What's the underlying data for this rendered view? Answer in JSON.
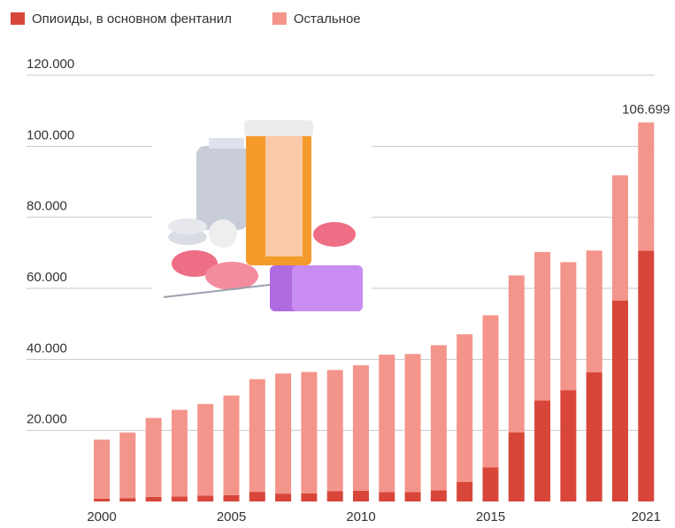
{
  "chart_data": {
    "type": "stacked_bar",
    "categories": [
      "2000",
      null,
      null,
      null,
      null,
      "2005",
      null,
      null,
      null,
      null,
      "2010",
      null,
      null,
      null,
      null,
      "2015",
      null,
      null,
      null,
      null,
      null,
      "2021"
    ],
    "series": [
      {
        "name": "Опиоиды, в основном фентанил",
        "color": "#d8463a",
        "values": [
          782,
          957,
          1295,
          1400,
          1664,
          1742,
          2707,
          2213,
          2306,
          2946,
          3007,
          2666,
          2628,
          3105,
          5544,
          9580,
          19413,
          28466,
          31335,
          36359,
          56516,
          70601
        ]
      },
      {
        "name": "Остальное",
        "color": "#f4958b",
        "values": [
          16633,
          18437,
          22223,
          24385,
          25760,
          28071,
          31718,
          33797,
          34144,
          34058,
          35322,
          38674,
          38874,
          40877,
          41511,
          42824,
          44219,
          41771,
          36032,
          34271,
          35283,
          36098
        ]
      }
    ],
    "ylim": [
      0,
      120000
    ],
    "yticks": [
      {
        "value": 20000,
        "label": "20.000"
      },
      {
        "value": 40000,
        "label": "40.000"
      },
      {
        "value": 60000,
        "label": "60.000"
      },
      {
        "value": 80000,
        "label": "80.000"
      },
      {
        "value": 100000,
        "label": "100.000"
      },
      {
        "value": 120000,
        "label": "120.000"
      }
    ],
    "grid": true,
    "legend": "top-left",
    "annotations": [
      {
        "label": "106.699",
        "value": 106699,
        "category": "2021"
      }
    ]
  }
}
